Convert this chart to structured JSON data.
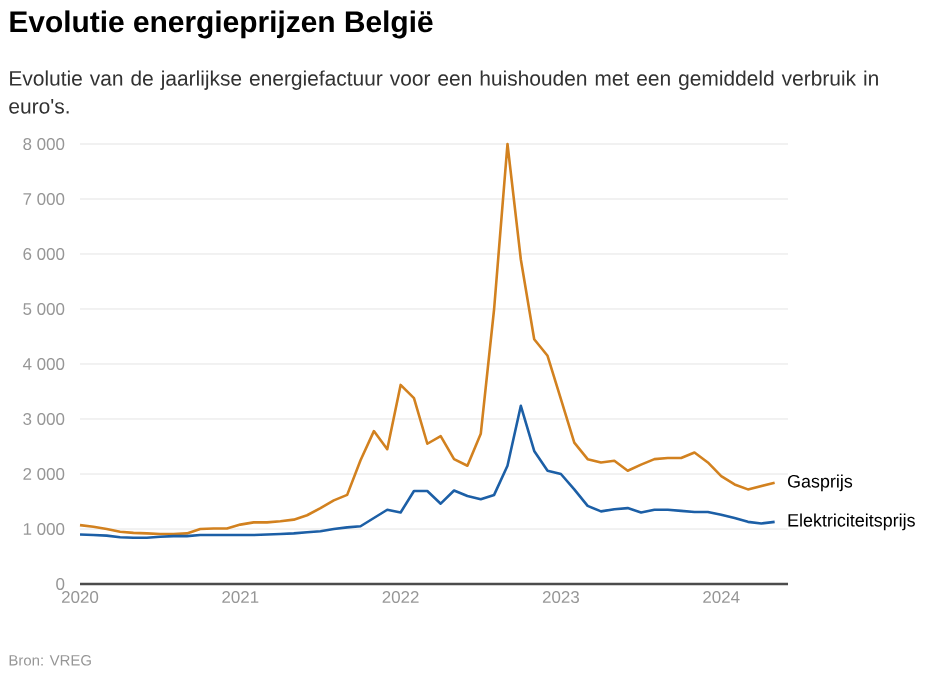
{
  "chart_data": {
    "type": "line",
    "title": "Evolutie energieprijzen België",
    "subtitle": "Evolutie van de jaarlijkse energiefactuur voor een huishouden met een gemiddeld verbruik in euro's.",
    "annotations": [
      "Bron: VREG"
    ],
    "x": [
      "2020-01",
      "2020-02",
      "2020-03",
      "2020-04",
      "2020-05",
      "2020-06",
      "2020-07",
      "2020-08",
      "2020-09",
      "2020-10",
      "2020-11",
      "2020-12",
      "2021-01",
      "2021-02",
      "2021-03",
      "2021-04",
      "2021-05",
      "2021-06",
      "2021-07",
      "2021-08",
      "2021-09",
      "2021-10",
      "2021-11",
      "2021-12",
      "2022-01",
      "2022-02",
      "2022-03",
      "2022-04",
      "2022-05",
      "2022-06",
      "2022-07",
      "2022-08",
      "2022-09",
      "2022-10",
      "2022-11",
      "2022-12",
      "2023-01",
      "2023-02",
      "2023-03",
      "2023-04",
      "2023-05",
      "2023-06",
      "2023-07",
      "2023-08",
      "2023-09",
      "2023-10",
      "2023-11",
      "2023-12",
      "2024-01",
      "2024-02",
      "2024-03",
      "2024-04",
      "2024-05"
    ],
    "series": [
      {
        "name": "Gasprijs",
        "color": "#d2811f",
        "values": [
          1070,
          1040,
          1000,
          950,
          930,
          920,
          910,
          910,
          920,
          1000,
          1010,
          1010,
          1080,
          1120,
          1120,
          1140,
          1170,
          1250,
          1380,
          1520,
          1620,
          2250,
          2780,
          2450,
          3620,
          3380,
          2550,
          2690,
          2270,
          2150,
          2730,
          5000,
          8000,
          5900,
          4450,
          4150,
          3360,
          2570,
          2270,
          2210,
          2240,
          2060,
          2170,
          2270,
          2290,
          2290,
          2390,
          2210,
          1960,
          1810,
          1720,
          1780,
          1840
        ]
      },
      {
        "name": "Elektriciteitsprijs",
        "color": "#1c5fa6",
        "values": [
          900,
          890,
          880,
          850,
          840,
          840,
          860,
          870,
          870,
          890,
          890,
          890,
          890,
          890,
          900,
          910,
          920,
          940,
          960,
          1000,
          1030,
          1050,
          1200,
          1350,
          1300,
          1690,
          1690,
          1460,
          1700,
          1600,
          1540,
          1620,
          2150,
          3240,
          2420,
          2060,
          2000,
          1720,
          1420,
          1320,
          1360,
          1380,
          1300,
          1350,
          1350,
          1330,
          1310,
          1310,
          1260,
          1200,
          1130,
          1100,
          1130
        ]
      }
    ],
    "xlim": [
      "2020-01",
      "2024-06"
    ],
    "xticks": [
      "2020",
      "2021",
      "2022",
      "2023",
      "2024"
    ],
    "ylim": [
      0,
      8000
    ],
    "yticks": [
      0,
      {
        "value": 1000,
        "label": "1 000"
      },
      {
        "value": 2000,
        "label": "2 000"
      },
      {
        "value": 3000,
        "label": "3 000"
      },
      {
        "value": 4000,
        "label": "4 000"
      },
      {
        "value": 5000,
        "label": "5 000"
      },
      {
        "value": 6000,
        "label": "6 000"
      },
      {
        "value": 7000,
        "label": "7 000"
      },
      {
        "value": 8000,
        "label": "8 000"
      }
    ],
    "grid": "y",
    "legend": false,
    "marker": "none",
    "line_style": "solid"
  }
}
